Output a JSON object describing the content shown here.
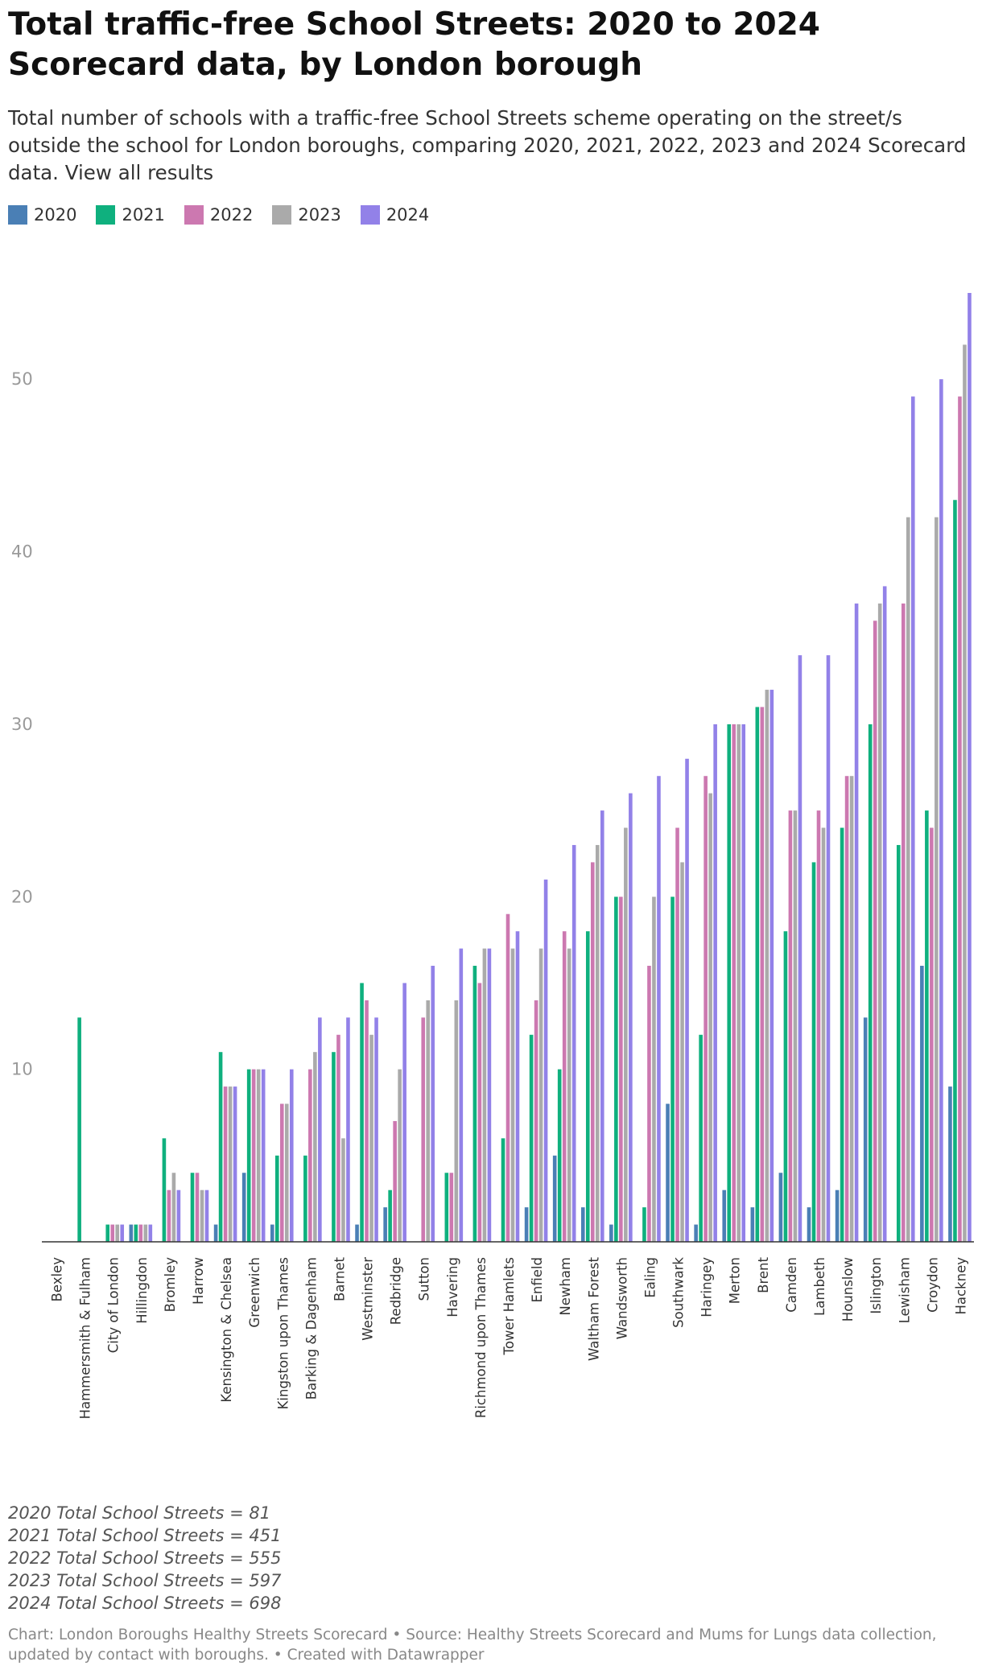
{
  "title": "Total traffic-free School Streets: 2020 to 2024 Scorecard data, by London borough",
  "subtitle": "Total number of schools with a traffic-free School Streets scheme operating on the street/s outside the school for London boroughs, comparing 2020, 2021, 2022, 2023 and 2024 Scorecard data. View all results",
  "legend": [
    {
      "label": "2020",
      "color": "#4a7fb5"
    },
    {
      "label": "2021",
      "color": "#0fb07e"
    },
    {
      "label": "2022",
      "color": "#cc78b0"
    },
    {
      "label": "2023",
      "color": "#aaaaaa"
    },
    {
      "label": "2024",
      "color": "#9281e8"
    }
  ],
  "chart_data": {
    "type": "bar",
    "title": "Total traffic-free School Streets: 2020 to 2024 Scorecard data, by London borough",
    "xlabel": "",
    "ylabel": "",
    "ylim": [
      0,
      55
    ],
    "yticks": [
      10,
      20,
      30,
      40,
      50
    ],
    "grid": false,
    "legend_position": "top-left",
    "categories": [
      "Bexley",
      "Hammersmith & Fulham",
      "City of London",
      "Hillingdon",
      "Bromley",
      "Harrow",
      "Kensington & Chelsea",
      "Greenwich",
      "Kingston upon Thames",
      "Barking & Dagenham",
      "Barnet",
      "Westminster",
      "Redbridge",
      "Sutton",
      "Havering",
      "Richmond upon Thames",
      "Tower Hamlets",
      "Enfield",
      "Newham",
      "Waltham Forest",
      "Wandsworth",
      "Ealing",
      "Southwark",
      "Haringey",
      "Merton",
      "Brent",
      "Camden",
      "Lambeth",
      "Hounslow",
      "Islington",
      "Lewisham",
      "Croydon",
      "Hackney"
    ],
    "series": [
      {
        "name": "2020",
        "color": "#4a7fb5",
        "values": [
          0,
          0,
          0,
          1,
          0,
          0,
          1,
          4,
          1,
          0,
          0,
          1,
          2,
          0,
          0,
          0,
          0,
          2,
          5,
          2,
          1,
          0,
          8,
          1,
          3,
          2,
          4,
          2,
          3,
          13,
          0,
          16,
          9
        ]
      },
      {
        "name": "2021",
        "color": "#0fb07e",
        "values": [
          0,
          13,
          1,
          1,
          6,
          4,
          11,
          10,
          5,
          5,
          11,
          15,
          3,
          0,
          4,
          16,
          6,
          12,
          10,
          18,
          20,
          2,
          20,
          12,
          30,
          31,
          18,
          22,
          24,
          30,
          23,
          25,
          43
        ]
      },
      {
        "name": "2022",
        "color": "#cc78b0",
        "values": [
          0,
          0,
          1,
          1,
          3,
          4,
          9,
          10,
          8,
          10,
          12,
          14,
          7,
          13,
          4,
          15,
          19,
          14,
          18,
          22,
          20,
          16,
          24,
          27,
          30,
          31,
          25,
          25,
          27,
          36,
          37,
          24,
          49
        ]
      },
      {
        "name": "2023",
        "color": "#aaaaaa",
        "values": [
          0,
          0,
          1,
          1,
          4,
          3,
          9,
          10,
          8,
          11,
          6,
          12,
          10,
          14,
          14,
          17,
          17,
          17,
          17,
          23,
          24,
          20,
          22,
          26,
          30,
          32,
          25,
          24,
          27,
          37,
          42,
          42,
          52
        ]
      },
      {
        "name": "2024",
        "color": "#9281e8",
        "values": [
          0,
          0,
          1,
          1,
          3,
          3,
          9,
          10,
          10,
          13,
          13,
          13,
          15,
          16,
          17,
          17,
          18,
          21,
          23,
          25,
          26,
          27,
          28,
          30,
          30,
          32,
          34,
          34,
          37,
          38,
          49,
          50,
          55
        ]
      }
    ]
  },
  "notes": [
    "2020 Total School Streets = 81",
    "2021 Total School Streets = 451",
    "2022 Total School Streets = 555",
    "2023 Total School Streets = 597",
    "2024 Total School Streets = 698"
  ],
  "credits": "Chart: London Boroughs Healthy Streets Scorecard • Source: Healthy Streets Scorecard and Mums for Lungs data collection, updated by contact with boroughs. • Created with Datawrapper"
}
